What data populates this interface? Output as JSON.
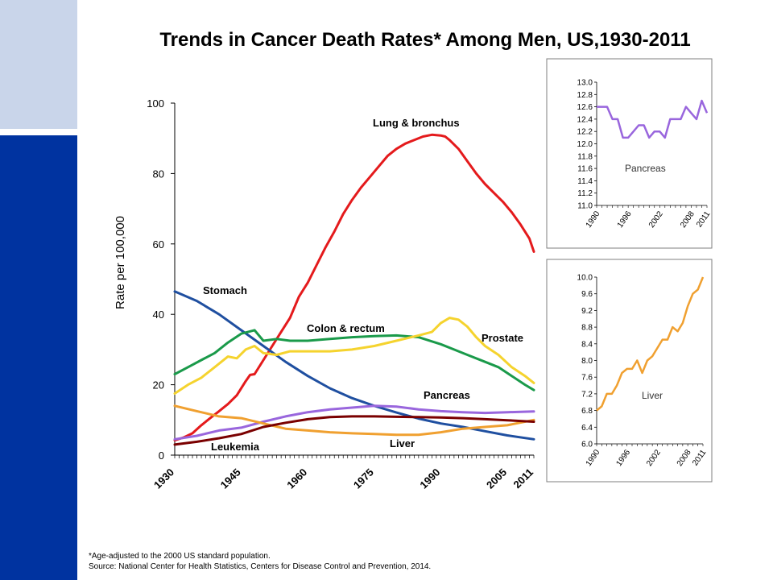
{
  "title": "Trends in Cancer Death Rates* Among Men, US,1930-2011",
  "footnote": {
    "line1": "*Age-adjusted to the 2000 US standard population.",
    "line2": "Source:  National Center for Health Statistics, Centers for Disease Control and Prevention, 2014."
  },
  "chart_data": [
    {
      "type": "line",
      "title": "",
      "xlabel": "",
      "ylabel": "Rate per 100,000",
      "xlim": [
        1930,
        2011
      ],
      "ylim": [
        0,
        100
      ],
      "y_ticks": [
        0,
        20,
        40,
        60,
        80,
        100
      ],
      "x_tick_labels": [
        "1930",
        "1945",
        "1960",
        "1975",
        "1990",
        "2005",
        "2011"
      ],
      "x_tick_values": [
        1930,
        1945,
        1960,
        1975,
        1990,
        2005,
        2011
      ],
      "grid": false,
      "series": [
        {
          "name": "Lung & bronchus",
          "color": "#e41a1c",
          "x": [
            1930,
            1932,
            1934,
            1936,
            1938,
            1940,
            1942,
            1944,
            1946,
            1947,
            1948,
            1950,
            1952,
            1954,
            1956,
            1958,
            1960,
            1962,
            1964,
            1966,
            1968,
            1970,
            1972,
            1974,
            1976,
            1978,
            1980,
            1982,
            1984,
            1986,
            1988,
            1990,
            1991,
            1992,
            1994,
            1996,
            1998,
            2000,
            2002,
            2004,
            2006,
            2008,
            2010,
            2011
          ],
          "y": [
            4.2,
            5,
            6.2,
            8.5,
            10.5,
            12.5,
            14.5,
            17,
            21,
            22.8,
            23,
            27,
            31,
            35,
            39,
            45,
            49,
            54,
            59,
            63.5,
            68.5,
            72.5,
            76,
            79,
            82,
            85,
            87,
            88.5,
            89.5,
            90.5,
            91,
            90.8,
            90.5,
            89.5,
            87,
            83.5,
            80,
            77,
            74.5,
            72,
            69,
            65.5,
            61.5,
            57.8
          ]
        },
        {
          "name": "Stomach",
          "color": "#1f4fa0",
          "x": [
            1930,
            1935,
            1940,
            1945,
            1950,
            1955,
            1960,
            1965,
            1970,
            1975,
            1980,
            1985,
            1990,
            1995,
            2000,
            2005,
            2011
          ],
          "y": [
            46.5,
            43.8,
            40,
            35.5,
            31,
            26.5,
            22.5,
            19,
            16.2,
            14,
            12.1,
            10.4,
            9,
            8,
            6.8,
            5.6,
            4.5
          ]
        },
        {
          "name": "Colon & rectum",
          "color": "#1a9a4a",
          "x": [
            1930,
            1933,
            1936,
            1939,
            1942,
            1945,
            1948,
            1950,
            1953,
            1956,
            1960,
            1965,
            1970,
            1975,
            1980,
            1985,
            1990,
            1993,
            1996,
            2000,
            2003,
            2006,
            2009,
            2011
          ],
          "y": [
            23,
            25,
            27,
            29,
            32,
            34.5,
            35.5,
            32.5,
            33,
            32.5,
            32.5,
            33,
            33.5,
            33.8,
            34,
            33.5,
            31.5,
            30,
            28.5,
            26.5,
            25,
            22.5,
            20,
            18.5
          ]
        },
        {
          "name": "Prostate",
          "color": "#f5d32e",
          "x": [
            1930,
            1933,
            1936,
            1939,
            1942,
            1944,
            1946,
            1948,
            1950,
            1953,
            1956,
            1960,
            1965,
            1970,
            1975,
            1980,
            1985,
            1988,
            1990,
            1992,
            1994,
            1996,
            1998,
            2000,
            2003,
            2006,
            2009,
            2011
          ],
          "y": [
            17.5,
            20,
            22,
            25,
            28,
            27.5,
            30,
            31,
            29,
            28.5,
            29.5,
            29.5,
            29.5,
            30,
            31,
            32.5,
            34,
            35,
            37.5,
            39,
            38.5,
            36.5,
            33.5,
            31,
            28.5,
            25,
            22.5,
            20.5
          ]
        },
        {
          "name": "Pancreas",
          "color": "#9966dd",
          "x": [
            1930,
            1935,
            1940,
            1945,
            1950,
            1955,
            1960,
            1965,
            1970,
            1975,
            1980,
            1985,
            1990,
            1995,
            2000,
            2005,
            2011
          ],
          "y": [
            4.5,
            5.5,
            7,
            7.8,
            9.5,
            11,
            12.2,
            13,
            13.5,
            14,
            13.8,
            13,
            12.5,
            12.2,
            12,
            12.2,
            12.4
          ]
        },
        {
          "name": "Liver",
          "color": "#f0a030",
          "x": [
            1930,
            1935,
            1940,
            1945,
            1950,
            1955,
            1960,
            1965,
            1970,
            1975,
            1980,
            1985,
            1990,
            1995,
            2000,
            2005,
            2011
          ],
          "y": [
            14,
            12.5,
            11,
            10.5,
            9,
            7.5,
            7,
            6.5,
            6.2,
            6,
            5.8,
            5.8,
            6.5,
            7.5,
            8,
            8.5,
            10
          ]
        },
        {
          "name": "Leukemia",
          "color": "#7a0000",
          "x": [
            1930,
            1935,
            1940,
            1945,
            1950,
            1955,
            1960,
            1965,
            1970,
            1975,
            1980,
            1985,
            1990,
            1995,
            2000,
            2005,
            2011
          ],
          "y": [
            3,
            3.8,
            4.8,
            6,
            8,
            9.2,
            10.2,
            10.8,
            11,
            11,
            10.9,
            10.8,
            10.7,
            10.5,
            10.2,
            9.9,
            9.5
          ]
        }
      ]
    },
    {
      "type": "line",
      "title": "",
      "series_label": "Pancreas",
      "color": "#9966dd",
      "xlim": [
        1990,
        2011
      ],
      "ylim": [
        11.0,
        13.0
      ],
      "y_ticks": [
        "11.0",
        "11.2",
        "11.4",
        "11.6",
        "11.8",
        "12.0",
        "12.2",
        "12.4",
        "12.6",
        "12.8",
        "13.0"
      ],
      "x_tick_labels": [
        "1990",
        "1996",
        "2002",
        "2008",
        "2011"
      ],
      "x_tick_values": [
        1990,
        1996,
        2002,
        2008,
        2011
      ],
      "x": [
        1990,
        1991,
        1992,
        1993,
        1994,
        1995,
        1996,
        1997,
        1998,
        1999,
        2000,
        2001,
        2002,
        2003,
        2004,
        2005,
        2006,
        2007,
        2008,
        2009,
        2010,
        2011
      ],
      "y": [
        12.6,
        12.6,
        12.6,
        12.4,
        12.4,
        12.1,
        12.1,
        12.2,
        12.3,
        12.3,
        12.1,
        12.2,
        12.2,
        12.1,
        12.4,
        12.4,
        12.4,
        12.6,
        12.5,
        12.4,
        12.7,
        12.5
      ]
    },
    {
      "type": "line",
      "title": "",
      "series_label": "Liver",
      "color": "#f0a030",
      "xlim": [
        1990,
        2011
      ],
      "ylim": [
        6.0,
        10.0
      ],
      "y_ticks": [
        "6.0",
        "6.4",
        "6.8",
        "7.2",
        "7.6",
        "8.0",
        "8.4",
        "8.8",
        "9.2",
        "9.6",
        "10.0"
      ],
      "x_tick_labels": [
        "1990",
        "1996",
        "2002",
        "2008",
        "2011"
      ],
      "x_tick_values": [
        1990,
        1996,
        2002,
        2008,
        2011
      ],
      "x": [
        1990,
        1991,
        1992,
        1993,
        1994,
        1995,
        1996,
        1997,
        1998,
        1999,
        2000,
        2001,
        2002,
        2003,
        2004,
        2005,
        2006,
        2007,
        2008,
        2009,
        2010,
        2011
      ],
      "y": [
        6.8,
        6.9,
        7.2,
        7.2,
        7.4,
        7.7,
        7.8,
        7.8,
        8.0,
        7.7,
        8.0,
        8.1,
        8.3,
        8.5,
        8.5,
        8.8,
        8.7,
        8.9,
        9.3,
        9.6,
        9.7,
        10.0
      ]
    }
  ]
}
